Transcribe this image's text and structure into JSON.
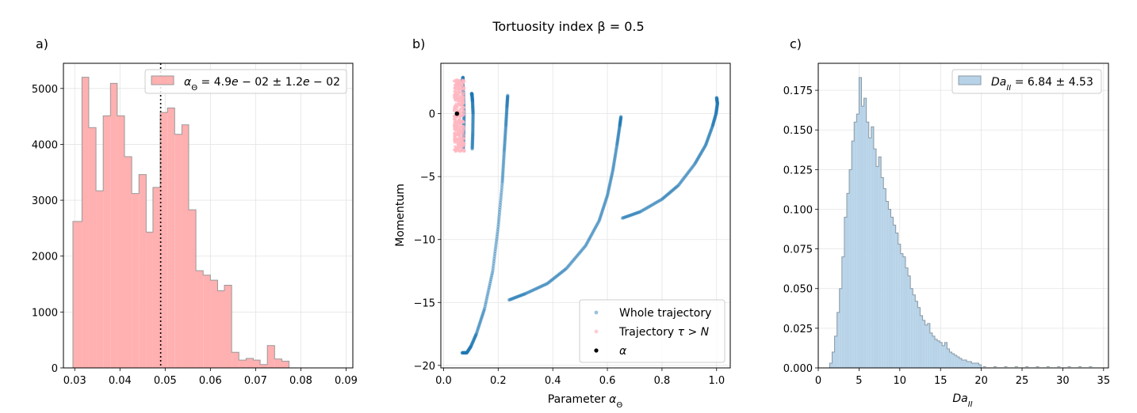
{
  "suptitle": "Tortuosity index β = 0.5",
  "panels": {
    "a": "a)",
    "b": "b)",
    "c": "c)"
  },
  "chart_data": [
    {
      "id": "a",
      "type": "histogram",
      "xlim": [
        0.0275,
        0.0915
      ],
      "ylim": [
        0,
        5450
      ],
      "xticks": [
        0.03,
        0.04,
        0.05,
        0.06,
        0.07,
        0.08,
        0.09
      ],
      "xtick_labels": [
        "0.03",
        "0.04",
        "0.05",
        "0.06",
        "0.07",
        "0.08",
        "0.09"
      ],
      "yticks": [
        0,
        1000,
        2000,
        3000,
        4000,
        5000
      ],
      "ytick_labels": [
        "0",
        "1000",
        "2000",
        "3000",
        "4000",
        "5000"
      ],
      "grid": true,
      "bin_edges": [
        0.0296,
        0.0316,
        0.0331,
        0.0347,
        0.0363,
        0.0379,
        0.0394,
        0.041,
        0.0426,
        0.0442,
        0.0458,
        0.0473,
        0.0489,
        0.0505,
        0.0521,
        0.0537,
        0.0552,
        0.0568,
        0.0584,
        0.06,
        0.0616,
        0.0631,
        0.0647,
        0.0663,
        0.0679,
        0.0695,
        0.071,
        0.0726,
        0.0742,
        0.0758,
        0.0774,
        0.0789,
        0.0805,
        0.0821,
        0.0837,
        0.0853,
        0.0868,
        0.0884
      ],
      "counts": [
        2620,
        5200,
        4300,
        3170,
        4510,
        5090,
        4510,
        3780,
        3120,
        3460,
        2430,
        3230,
        4570,
        4650,
        4180,
        4350,
        2830,
        1740,
        1660,
        1570,
        1380,
        1480,
        280,
        140,
        170,
        140,
        60,
        400,
        160,
        120,
        0,
        0,
        0,
        0,
        0,
        0,
        0
      ],
      "vline_x": 0.049,
      "legend": {
        "label": "αΘ = 4.9e−02 ± 1.2e−02",
        "loc": "upper right"
      },
      "colors": {
        "fill": "#ffb0b0",
        "edge": "#999999",
        "vline": "#000000"
      }
    },
    {
      "id": "b",
      "type": "scatter",
      "xlabel": "Parameter αΘ",
      "ylabel": "Momentum",
      "xlim": [
        -0.01,
        1.05
      ],
      "ylim": [
        -20.2,
        4.0
      ],
      "xticks": [
        0.0,
        0.2,
        0.4,
        0.6,
        0.8,
        1.0
      ],
      "xtick_labels": [
        "0.0",
        "0.2",
        "0.4",
        "0.6",
        "0.8",
        "1.0"
      ],
      "yticks": [
        -20,
        -15,
        -10,
        -5,
        0
      ],
      "ytick_labels": [
        "−20",
        "−15",
        "−10",
        "−5",
        "0"
      ],
      "grid": true,
      "trajectory_segments": [
        {
          "x": [
            0.068,
            0.085,
            0.1,
            0.12,
            0.15,
            0.18,
            0.2,
            0.215,
            0.222,
            0.228,
            0.232,
            0.235
          ],
          "y": [
            -19.0,
            -19.0,
            -18.5,
            -17.5,
            -15.5,
            -12.5,
            -9.0,
            -5.5,
            -3.0,
            -1.0,
            0.5,
            1.5
          ]
        },
        {
          "x": [
            0.24,
            0.3,
            0.38,
            0.45,
            0.52,
            0.57,
            0.6,
            0.62,
            0.635,
            0.645,
            0.65
          ],
          "y": [
            -14.8,
            -14.3,
            -13.5,
            -12.3,
            -10.5,
            -8.5,
            -6.5,
            -4.5,
            -2.5,
            -1.0,
            -0.2
          ]
        },
        {
          "x": [
            0.655,
            0.72,
            0.8,
            0.86,
            0.92,
            0.96,
            0.985,
            0.998,
            1.003,
            1.0
          ],
          "y": [
            -8.3,
            -7.8,
            -6.8,
            -5.7,
            -4.0,
            -2.5,
            -1.0,
            0.0,
            0.8,
            1.3
          ]
        },
        {
          "x": [
            0.072,
            0.074,
            0.075,
            0.073,
            0.07,
            0.071
          ],
          "y": [
            -2.8,
            -1.5,
            0.0,
            1.5,
            2.6,
            2.9
          ]
        },
        {
          "x": [
            0.105,
            0.107,
            0.108,
            0.106,
            0.104,
            0.103
          ],
          "y": [
            -2.8,
            -1.5,
            0.0,
            1.0,
            1.5,
            1.6
          ]
        }
      ],
      "trajectory_cluster": {
        "x_range": [
          0.03,
          0.085
        ],
        "y_range": [
          -3.0,
          2.7
        ]
      },
      "alpha_point": {
        "x": 0.049,
        "y": 0.0
      },
      "legend": {
        "entries": [
          "Whole trajectory",
          "Trajectory τ > N",
          "α"
        ],
        "loc": "lower right"
      },
      "colors": {
        "whole": "#1f77b4",
        "tail": "#ffb6c1",
        "alpha": "#000000"
      }
    },
    {
      "id": "c",
      "type": "histogram",
      "xlabel": "DaII",
      "xlim": [
        0,
        35.6
      ],
      "ylim": [
        0,
        0.192
      ],
      "xticks": [
        0,
        5,
        10,
        15,
        20,
        25,
        30,
        35
      ],
      "xtick_labels": [
        "0",
        "5",
        "10",
        "15",
        "20",
        "25",
        "30",
        "35"
      ],
      "yticks": [
        0.0,
        0.025,
        0.05,
        0.075,
        0.1,
        0.125,
        0.15,
        0.175
      ],
      "ytick_labels": [
        "0.000",
        "0.025",
        "0.050",
        "0.075",
        "0.100",
        "0.125",
        "0.150",
        "0.175"
      ],
      "grid": true,
      "bin_edges": [
        1.4,
        1.7,
        2.0,
        2.3,
        2.6,
        2.9,
        3.2,
        3.5,
        3.8,
        4.1,
        4.4,
        4.7,
        5.0,
        5.3,
        5.6,
        5.9,
        6.2,
        6.5,
        6.8,
        7.1,
        7.4,
        7.7,
        8.0,
        8.3,
        8.6,
        8.9,
        9.2,
        9.5,
        9.8,
        10.1,
        10.4,
        10.7,
        11.0,
        11.3,
        11.6,
        11.9,
        12.2,
        12.5,
        12.8,
        13.1,
        13.4,
        13.7,
        14.0,
        14.3,
        14.6,
        14.9,
        15.2,
        15.5,
        15.8,
        16.1,
        16.4,
        16.7,
        17.0,
        17.3,
        17.6,
        17.9,
        18.2,
        18.5,
        18.8,
        19.1,
        19.4,
        19.7,
        20.0
      ],
      "density": [
        0.003,
        0.01,
        0.02,
        0.035,
        0.05,
        0.07,
        0.095,
        0.11,
        0.125,
        0.143,
        0.155,
        0.16,
        0.183,
        0.165,
        0.17,
        0.155,
        0.145,
        0.152,
        0.138,
        0.127,
        0.133,
        0.12,
        0.113,
        0.105,
        0.1,
        0.095,
        0.09,
        0.085,
        0.078,
        0.072,
        0.07,
        0.063,
        0.058,
        0.05,
        0.046,
        0.042,
        0.038,
        0.033,
        0.03,
        0.027,
        0.028,
        0.022,
        0.02,
        0.018,
        0.017,
        0.016,
        0.014,
        0.016,
        0.012,
        0.01,
        0.009,
        0.008,
        0.007,
        0.006,
        0.005,
        0.005,
        0.004,
        0.004,
        0.003,
        0.003,
        0.003,
        0.002
      ],
      "legend": {
        "label": "DaII = 6.84 ± 4.53",
        "loc": "upper right"
      },
      "colors": {
        "fill": "#b8d3e8",
        "edge": "#8a9aa5"
      }
    }
  ]
}
